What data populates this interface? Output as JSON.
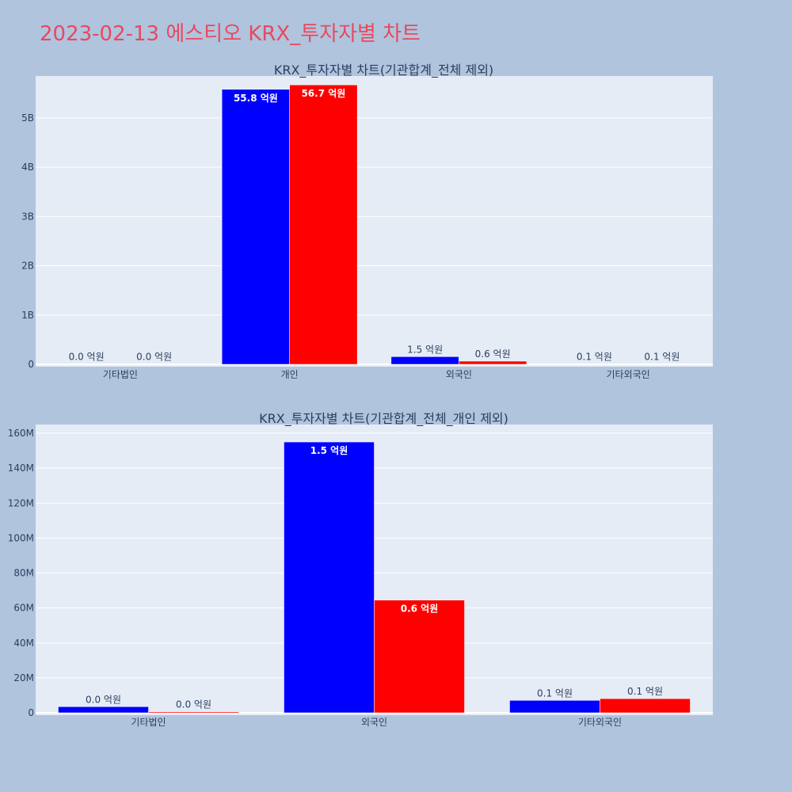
{
  "title": "2023-02-13 에스티오 KRX_투자자별 차트",
  "colors": {
    "buy": "#0000ff",
    "sell": "#ff0000",
    "plot_bg": "#e5ecf6",
    "page_bg": "#b0c4de",
    "title": "#e8495f"
  },
  "chart_data": [
    {
      "type": "bar",
      "title": "KRX_투자자별 차트(기관합계_전체 제외)",
      "categories": [
        "기타법인",
        "개인",
        "외국인",
        "기타외국인"
      ],
      "series": [
        {
          "values": [
            0.003,
            5.58,
            0.155,
            0.007
          ],
          "labels": [
            "0.0 억원",
            "55.8 억원",
            "1.5 억원",
            "0.1 억원"
          ]
        },
        {
          "values": [
            0.001,
            5.67,
            0.064,
            0.008
          ],
          "labels": [
            "0.0 억원",
            "56.7 억원",
            "0.6 억원",
            "0.1 억원"
          ]
        }
      ],
      "ylim": [
        0,
        5.85
      ],
      "yticks": [
        0,
        1,
        2,
        3,
        4,
        5
      ],
      "yticklabels": [
        "0",
        "1B",
        "2B",
        "3B",
        "4B",
        "5B"
      ],
      "grid": true
    },
    {
      "type": "bar",
      "title": "KRX_투자자별 차트(기관합계_전체_개인 제외)",
      "categories": [
        "기타법인",
        "외국인",
        "기타외국인"
      ],
      "series": [
        {
          "values": [
            3.5,
            155,
            7.1
          ],
          "labels": [
            "0.0 억원",
            "1.5 억원",
            "0.1 억원"
          ]
        },
        {
          "values": [
            0.6,
            64.5,
            8.1
          ],
          "labels": [
            "0.0 억원",
            "0.6 억원",
            "0.1 억원"
          ]
        }
      ],
      "ylim": [
        0,
        165
      ],
      "yticks": [
        0,
        20,
        40,
        60,
        80,
        100,
        120,
        140,
        160
      ],
      "yticklabels": [
        "0",
        "20M",
        "40M",
        "60M",
        "80M",
        "100M",
        "120M",
        "140M",
        "160M"
      ],
      "grid": true
    }
  ]
}
